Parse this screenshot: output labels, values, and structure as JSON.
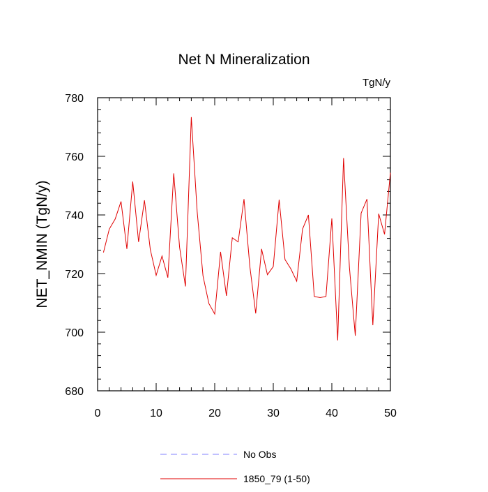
{
  "chart_data": {
    "type": "line",
    "title": "Net N Mineralization",
    "units": "TgN/y",
    "xlabel": "",
    "ylabel": "NET_NMIN  (TgN/y)",
    "xlim": [
      0,
      50
    ],
    "ylim": [
      680,
      780
    ],
    "xticks": [
      0,
      10,
      20,
      30,
      40,
      50
    ],
    "yticks": [
      680,
      700,
      720,
      740,
      760,
      780
    ],
    "grid": false,
    "legend_position": "bottom-center",
    "series": [
      {
        "name": "No Obs",
        "color": "#8080ff",
        "style": "dashed",
        "x": [],
        "values": []
      },
      {
        "name": "1850_79 (1-50)",
        "color": "#e00000",
        "style": "solid",
        "x": [
          1,
          2,
          3,
          4,
          5,
          6,
          7,
          8,
          9,
          10,
          11,
          12,
          13,
          14,
          15,
          16,
          17,
          18,
          19,
          20,
          21,
          22,
          23,
          24,
          25,
          26,
          27,
          28,
          29,
          30,
          31,
          32,
          33,
          34,
          35,
          36,
          37,
          38,
          39,
          40,
          41,
          42,
          43,
          44,
          45,
          46,
          47,
          48,
          49,
          50
        ],
        "values": [
          727.2,
          735.2,
          738.6,
          744.6,
          728.4,
          751.4,
          730.8,
          745.0,
          728.2,
          719.4,
          726.0,
          718.6,
          754.2,
          729.0,
          715.6,
          773.4,
          741.2,
          719.2,
          709.8,
          706.2,
          727.4,
          712.4,
          732.2,
          730.8,
          745.4,
          722.4,
          706.4,
          728.4,
          719.6,
          722.4,
          745.2,
          724.8,
          721.6,
          717.4,
          735.2,
          740.0,
          712.2,
          711.8,
          712.2,
          738.8,
          697.2,
          759.4,
          722.2,
          698.8,
          740.6,
          745.4,
          702.4,
          740.4,
          733.4,
          754.4
        ]
      }
    ]
  }
}
